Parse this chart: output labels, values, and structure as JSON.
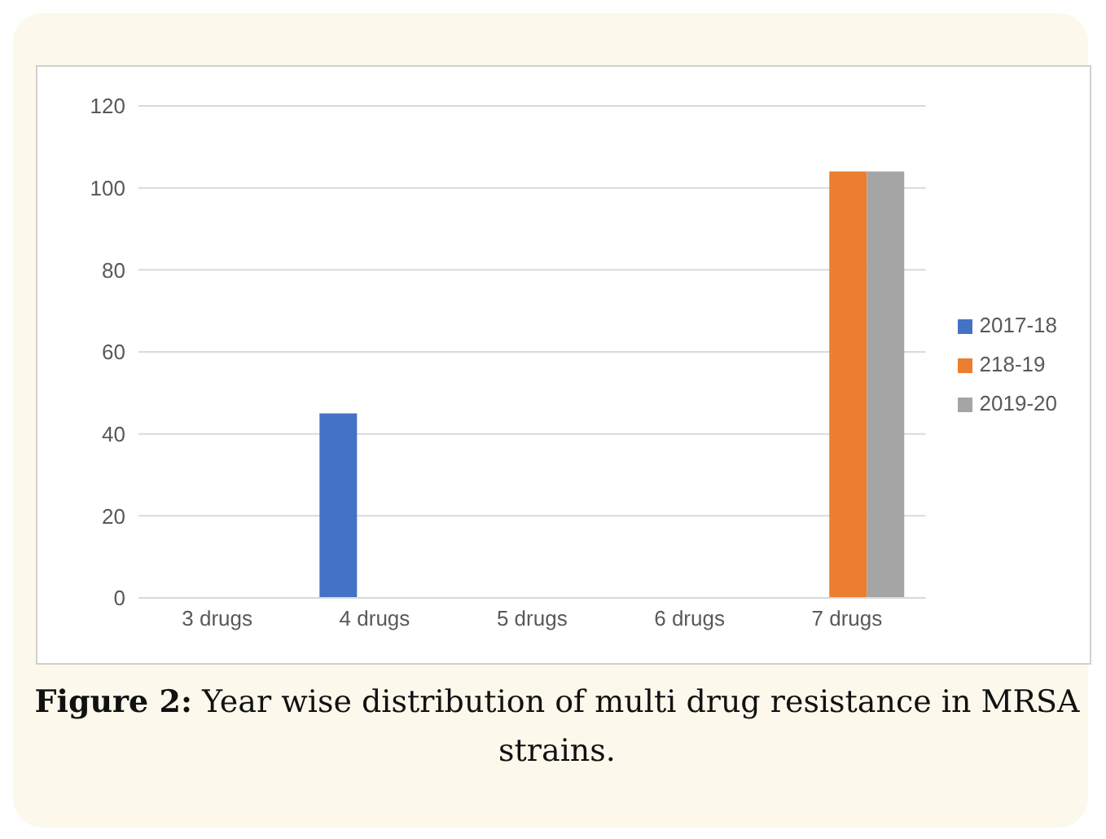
{
  "chart_data": {
    "type": "bar",
    "title": "Figure 2: Year wise distribution of multi drug resistance in MRSA strains.",
    "categories": [
      "3 drugs",
      "4 drugs",
      "5 drugs",
      "6 drugs",
      "7 drugs"
    ],
    "series": [
      {
        "name": "2017-18",
        "color": "#4472c4",
        "values": [
          0,
          45,
          0,
          0,
          0
        ]
      },
      {
        "name": "218-19",
        "color": "#ed7d31",
        "values": [
          0,
          0,
          0,
          0,
          104
        ]
      },
      {
        "name": "2019-20",
        "color": "#a5a5a5",
        "values": [
          0,
          0,
          0,
          0,
          104
        ]
      }
    ],
    "ylim": [
      0,
      120
    ],
    "yticks": [
      0,
      20,
      40,
      60,
      80,
      100,
      120
    ],
    "grid": "y",
    "legend": "right"
  }
}
